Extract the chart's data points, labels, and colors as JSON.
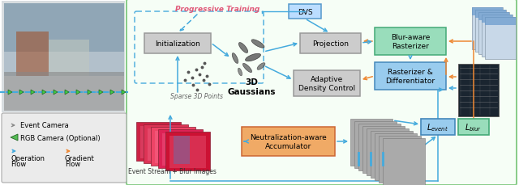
{
  "arrow_blue": "#44aadd",
  "arrow_orange": "#ee8833",
  "title_prog": "Progressive Training",
  "title_prog_color": "#e05878",
  "dvs_label": "DVS",
  "dvs_box_color": "#bbddff",
  "dvs_border_color": "#5599cc",
  "init_label": "Initialization",
  "init_box_color": "#cccccc",
  "init_border_color": "#999999",
  "proj_label": "Projection",
  "proj_box_color": "#cccccc",
  "proj_border_color": "#999999",
  "adc_label": "Adaptive\nDensity Control",
  "adc_box_color": "#cccccc",
  "adc_border_color": "#999999",
  "blur_label": "Blur-aware\nRasterizer",
  "blur_box_color": "#99ddbb",
  "blur_border_color": "#44aa77",
  "rast_label": "Rasterizer &\nDifferentiator",
  "rast_box_color": "#99ccee",
  "rast_border_color": "#4488bb",
  "nacc_label": "Neutralization-aware\nAccumulator",
  "nacc_box_color": "#f0aa66",
  "nacc_border_color": "#cc6633",
  "gauss_label": "3D\nGaussians",
  "sparse_label": "Sparse 3D Points",
  "levent_box_color": "#99ccee",
  "levent_border_color": "#4488bb",
  "lblur_box_color": "#99ddbb",
  "lblur_border_color": "#44aa77",
  "event_stream_label": "Event Stream + Blur Images"
}
